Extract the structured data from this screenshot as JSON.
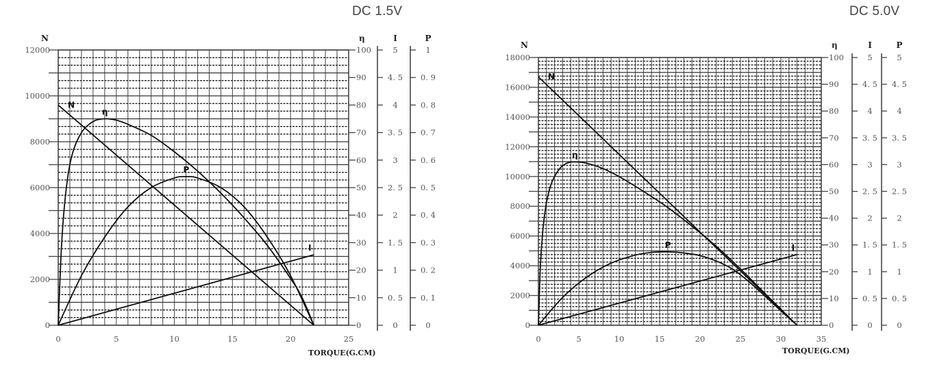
{
  "titles": {
    "left": "DC 1.5V",
    "right": "DC 5.0V"
  },
  "chart_data": [
    {
      "type": "line",
      "title": "DC 1.5V",
      "xlabel": "TORQUE(G.CM)",
      "ylabel": "N",
      "x_ticks": [
        0,
        5,
        10,
        15,
        20,
        25
      ],
      "xlim": [
        0,
        25
      ],
      "y_axes": {
        "N": {
          "label": "N",
          "ticks": [
            0,
            2000,
            4000,
            6000,
            8000,
            10000,
            12000
          ],
          "range": [
            0,
            12000
          ]
        },
        "eta": {
          "label": "η",
          "ticks": [
            0,
            10,
            20,
            30,
            40,
            50,
            60,
            70,
            80,
            90,
            100
          ],
          "range": [
            0,
            100
          ]
        },
        "I": {
          "label": "I",
          "ticks": [
            "0",
            "0.5",
            "1",
            "1.5",
            "2",
            "2.5",
            "3",
            "3.5",
            "4",
            "4.5",
            "5"
          ],
          "range": [
            0,
            5
          ]
        },
        "P": {
          "label": "P",
          "ticks": [
            "0",
            "0.1",
            "0.2",
            "0.3",
            "0.4",
            "0.5",
            "0.6",
            "0.7",
            "0.8",
            "0.9",
            "1"
          ],
          "range": [
            0,
            1
          ]
        }
      },
      "grid": true,
      "series": [
        {
          "name": "N",
          "axis": "N",
          "x": [
            0,
            22
          ],
          "values": [
            9600,
            0
          ]
        },
        {
          "name": "η",
          "axis": "eta",
          "x": [
            0,
            0.3,
            0.7,
            1.2,
            2,
            3,
            4,
            5,
            6,
            8,
            10,
            12,
            14,
            16,
            18,
            20,
            21,
            22
          ],
          "values": [
            0,
            30,
            50,
            62,
            70,
            74,
            75,
            74.5,
            73,
            69,
            63,
            56,
            48,
            39,
            29,
            17,
            10,
            0
          ]
        },
        {
          "name": "P",
          "axis": "P",
          "x": [
            0,
            2,
            4,
            6,
            8,
            10,
            11,
            12,
            14,
            16,
            18,
            20,
            22
          ],
          "values": [
            0,
            0.18,
            0.32,
            0.43,
            0.5,
            0.535,
            0.54,
            0.535,
            0.5,
            0.43,
            0.32,
            0.18,
            0
          ]
        },
        {
          "name": "I",
          "axis": "I",
          "x": [
            0,
            22
          ],
          "values": [
            0,
            1.28
          ]
        }
      ]
    },
    {
      "type": "line",
      "title": "DC 5.0V",
      "xlabel": "TORQUE(G.CM)",
      "ylabel": "N",
      "x_ticks": [
        0,
        5,
        10,
        15,
        20,
        25,
        30,
        35
      ],
      "xlim": [
        0,
        35
      ],
      "y_axes": {
        "N": {
          "label": "N",
          "ticks": [
            0,
            2000,
            4000,
            6000,
            8000,
            10000,
            12000,
            14000,
            16000,
            18000
          ],
          "range": [
            0,
            18000
          ]
        },
        "eta": {
          "label": "η",
          "ticks": [
            0,
            10,
            20,
            30,
            40,
            50,
            60,
            70,
            80,
            90,
            100
          ],
          "range": [
            0,
            100
          ]
        },
        "I": {
          "label": "I",
          "ticks": [
            "0",
            "0.5",
            "1",
            "1.5",
            "2",
            "2.5",
            "3",
            "3.5",
            "4",
            "4.5",
            "5"
          ],
          "range": [
            0,
            5
          ]
        },
        "P": {
          "label": "P",
          "ticks": [
            "0",
            "0.5",
            "1",
            "1.5",
            "2",
            "2.5",
            "3",
            "3.5",
            "4",
            "4.5",
            "5"
          ],
          "range": [
            0,
            5
          ]
        }
      },
      "grid": true,
      "series": [
        {
          "name": "N",
          "axis": "N",
          "x": [
            0,
            32
          ],
          "values": [
            16700,
            0
          ]
        },
        {
          "name": "η",
          "axis": "eta",
          "x": [
            0,
            0.3,
            0.8,
            1.5,
            2.5,
            3.5,
            4.5,
            6,
            8,
            10,
            13,
            16,
            19,
            22,
            25,
            28,
            30,
            32
          ],
          "values": [
            0,
            25,
            42,
            52,
            58,
            60.5,
            61,
            60.5,
            58.5,
            55.5,
            50,
            44,
            37,
            29.5,
            21,
            12,
            6,
            0
          ]
        },
        {
          "name": "P",
          "axis": "P",
          "x": [
            0,
            3,
            6,
            9,
            12,
            14,
            16,
            18,
            20,
            22,
            24,
            26,
            28,
            30,
            32
          ],
          "values": [
            0,
            0.52,
            0.9,
            1.16,
            1.31,
            1.36,
            1.37,
            1.35,
            1.3,
            1.2,
            1.05,
            0.82,
            0.55,
            0.27,
            0
          ]
        },
        {
          "name": "I",
          "axis": "I",
          "x": [
            0,
            32
          ],
          "values": [
            0,
            1.32
          ]
        }
      ]
    }
  ]
}
